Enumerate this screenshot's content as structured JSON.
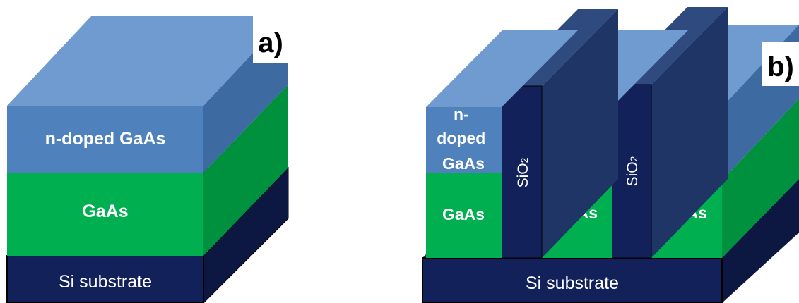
{
  "panel_a": {
    "letter": "a)",
    "layer_ndoped": "n-doped GaAs",
    "layer_gaas": "GaAs",
    "layer_substrate": "Si substrate"
  },
  "panel_b": {
    "letter": "b)",
    "substrate": "Si substrate",
    "ndoped_line1": "n-",
    "ndoped_line2": "doped",
    "ndoped_line3": "GaAs",
    "gaas": "GaAs",
    "oxide_base": "SiO",
    "oxide_sub": "2"
  },
  "colors": {
    "ndoped_front": "#4f81bd",
    "ndoped_top": "#6f9bd0",
    "ndoped_side": "#3d6aa0",
    "gaas_front": "#00b050",
    "gaas_side": "#00913f",
    "substrate_front": "#13215a",
    "substrate_top": "#1c2d6e",
    "substrate_side": "#0d1842",
    "oxide_front": "#13215a",
    "oxide_top": "#2e4a7e",
    "oxide_side": "#1e3566"
  }
}
